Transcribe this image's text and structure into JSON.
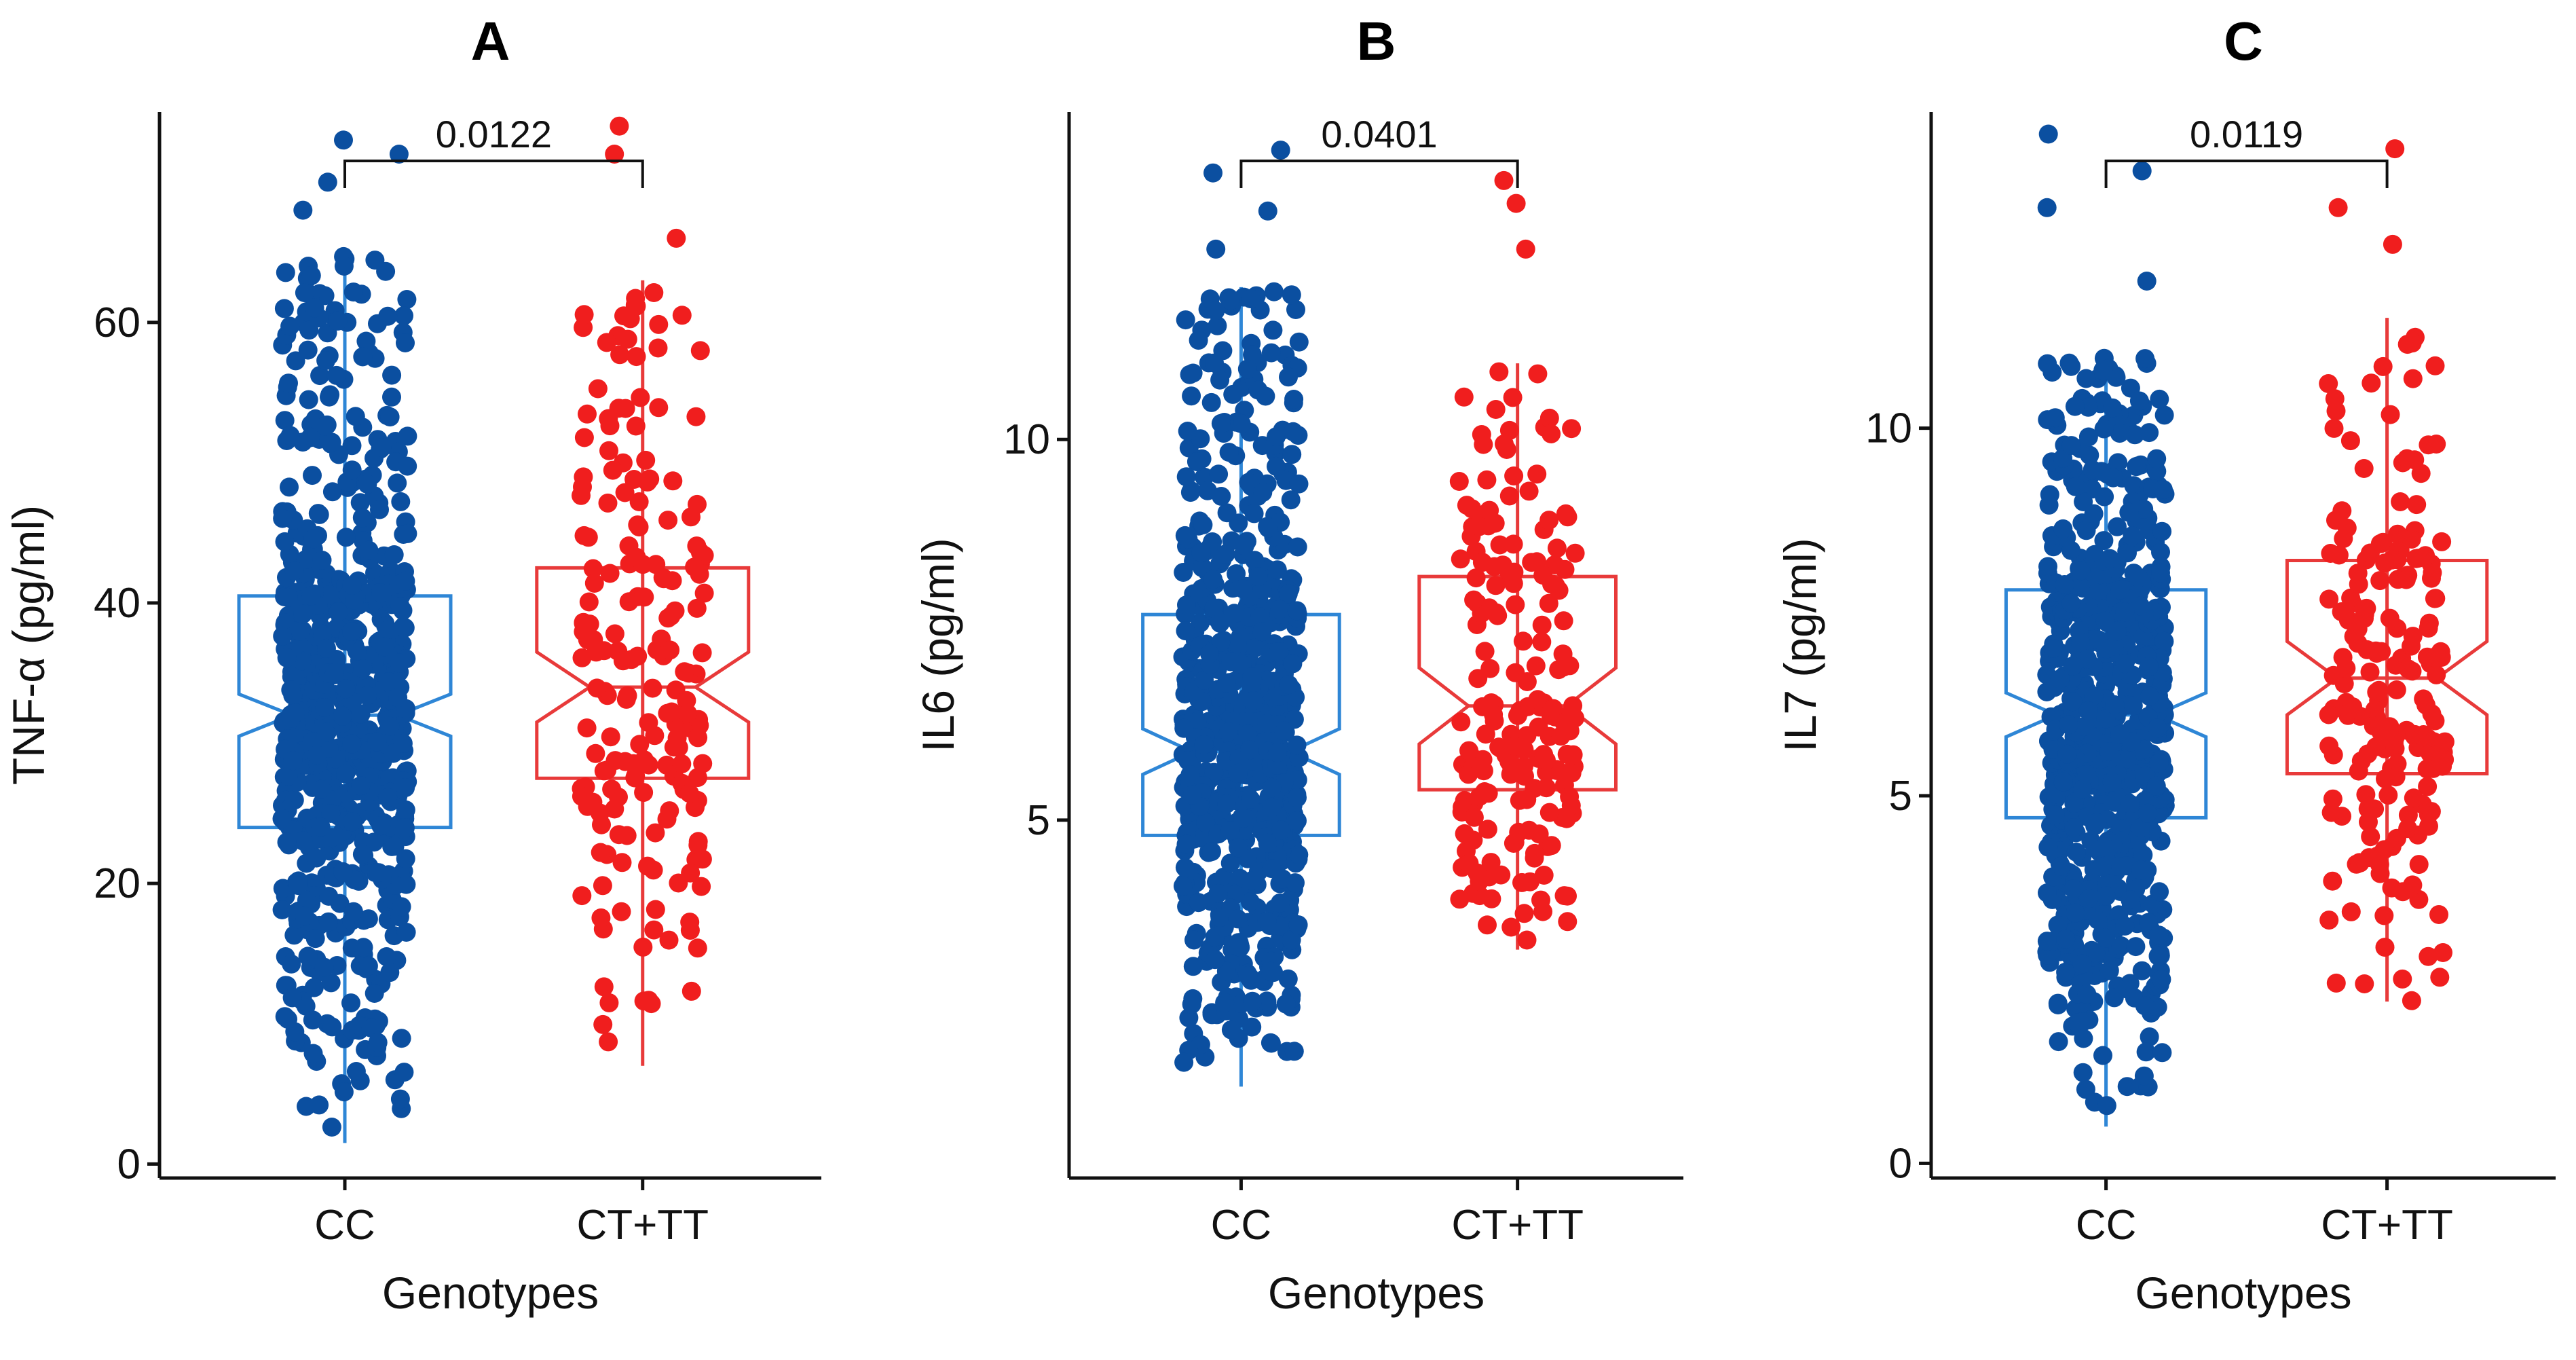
{
  "chart_data": [
    {
      "type": "boxplot",
      "title": "A",
      "xlabel": "Genotypes",
      "ylabel": "TNF-α (pg/ml)",
      "categories": [
        "CC",
        "CT+TT"
      ],
      "ylim": [
        -1,
        75
      ],
      "yticks": [
        0,
        20,
        40,
        60
      ],
      "pvalue": "0.0122",
      "colors": [
        "#0B4FA0",
        "#F01E1E"
      ],
      "box_colors": [
        "#2E86D6",
        "#E83A3A"
      ],
      "boxes": [
        {
          "name": "CC",
          "min": 1.5,
          "q1": 24,
          "median": 32,
          "q3": 40.5,
          "max": 65,
          "notch": [
            30.5,
            33.5
          ],
          "n_points": 700,
          "outliers": [
            68,
            70,
            72,
            73
          ]
        },
        {
          "name": "CT+TT",
          "min": 7,
          "q1": 27.5,
          "median": 34,
          "q3": 42.5,
          "max": 63,
          "notch": [
            31.5,
            36.5
          ],
          "n_points": 190,
          "outliers": [
            66,
            72,
            74
          ]
        }
      ]
    },
    {
      "type": "boxplot",
      "title": "B",
      "xlabel": "Genotypes",
      "ylabel": "IL6 (pg/ml)",
      "categories": [
        "CC",
        "CT+TT"
      ],
      "ylim": [
        0.3,
        14.3
      ],
      "yticks": [
        5,
        10
      ],
      "pvalue": "0.0401",
      "colors": [
        "#0B4FA0",
        "#F01E1E"
      ],
      "box_colors": [
        "#2E86D6",
        "#E83A3A"
      ],
      "boxes": [
        {
          "name": "CC",
          "min": 1.5,
          "q1": 4.8,
          "median": 5.9,
          "q3": 7.7,
          "max": 12,
          "notch": [
            5.6,
            6.2
          ],
          "n_points": 700,
          "outliers": [
            12.5,
            13,
            13.5,
            13.8
          ]
        },
        {
          "name": "CT+TT",
          "min": 3.3,
          "q1": 5.4,
          "median": 6.5,
          "q3": 8.2,
          "max": 11,
          "notch": [
            6.0,
            7.0
          ],
          "n_points": 190,
          "outliers": [
            12.5,
            13.1,
            13.4
          ]
        }
      ]
    },
    {
      "type": "boxplot",
      "title": "C",
      "xlabel": "Genotypes",
      "ylabel": "IL7 (pg/ml)",
      "categories": [
        "CC",
        "CT+TT"
      ],
      "ylim": [
        -0.2,
        14.3
      ],
      "yticks": [
        0,
        5,
        10
      ],
      "pvalue": "0.0119",
      "colors": [
        "#0B4FA0",
        "#F01E1E"
      ],
      "box_colors": [
        "#2E86D6",
        "#E83A3A"
      ],
      "boxes": [
        {
          "name": "CC",
          "min": 0.5,
          "q1": 4.7,
          "median": 6.1,
          "q3": 7.8,
          "max": 11,
          "notch": [
            5.8,
            6.4
          ],
          "n_points": 700,
          "outliers": [
            12,
            13,
            13.5,
            14
          ]
        },
        {
          "name": "CT+TT",
          "min": 2.2,
          "q1": 5.3,
          "median": 6.6,
          "q3": 8.2,
          "max": 11.5,
          "notch": [
            6.1,
            7.1
          ],
          "n_points": 190,
          "outliers": [
            12.5,
            13,
            13.8
          ]
        }
      ]
    }
  ]
}
